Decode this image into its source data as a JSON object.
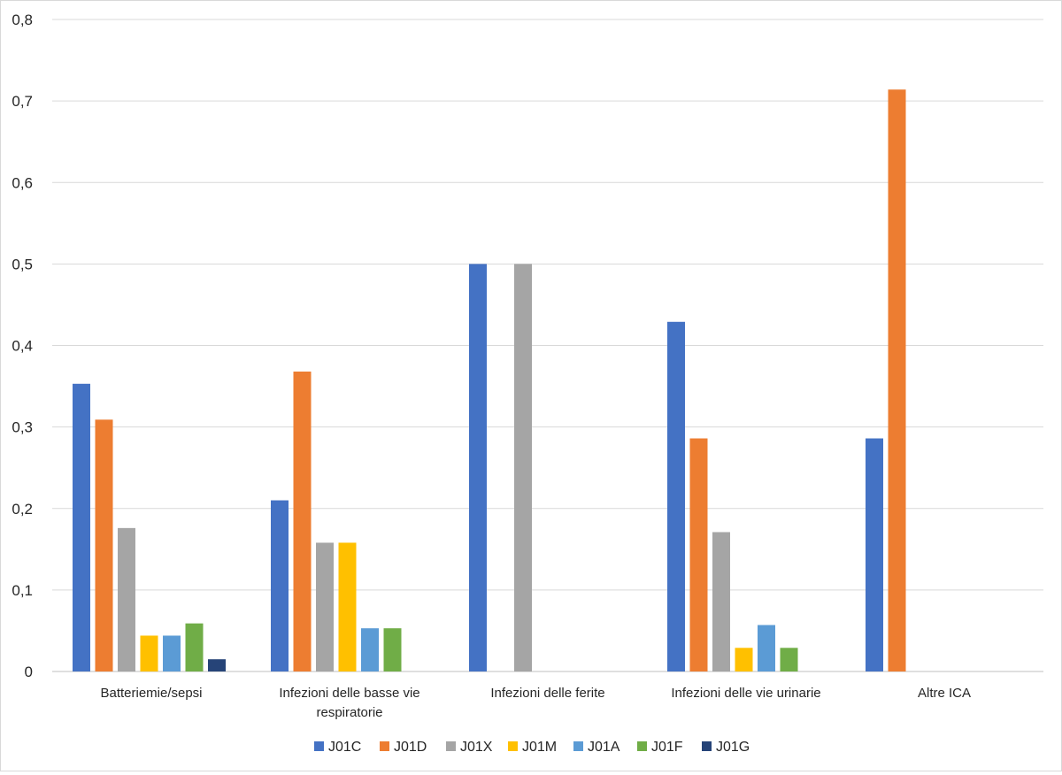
{
  "chart_data": {
    "type": "bar",
    "title": "",
    "xlabel": "",
    "ylabel": "",
    "ylim": [
      0,
      0.8
    ],
    "yticks": [
      "0",
      "0,1",
      "0,2",
      "0,3",
      "0,4",
      "0,5",
      "0,6",
      "0,7",
      "0,8"
    ],
    "categories": [
      [
        "Batteriemie/sepsi"
      ],
      [
        "Infezioni delle basse vie",
        "respiratorie"
      ],
      [
        "Infezioni delle ferite"
      ],
      [
        "Infezioni delle vie urinarie"
      ],
      [
        "Altre ICA"
      ]
    ],
    "series": [
      {
        "name": "J01C",
        "color": "#4472c4",
        "values": [
          0.353,
          0.21,
          0.5,
          0.429,
          0.286
        ]
      },
      {
        "name": "J01D",
        "color": "#ed7d31",
        "values": [
          0.309,
          0.368,
          0,
          0.286,
          0.714
        ]
      },
      {
        "name": "J01X",
        "color": "#a5a5a5",
        "values": [
          0.176,
          0.158,
          0.5,
          0.171,
          0
        ]
      },
      {
        "name": "J01M",
        "color": "#ffc000",
        "values": [
          0.044,
          0.158,
          0,
          0.029,
          0
        ]
      },
      {
        "name": "J01A",
        "color": "#5b9bd5",
        "values": [
          0.044,
          0.053,
          0,
          0.057,
          0
        ]
      },
      {
        "name": "J01F",
        "color": "#70ad47",
        "values": [
          0.059,
          0.053,
          0,
          0.029,
          0
        ]
      },
      {
        "name": "J01G",
        "color": "#264478",
        "values": [
          0.015,
          0,
          0,
          0,
          0
        ]
      }
    ],
    "grid": true,
    "legend": "bottom"
  }
}
